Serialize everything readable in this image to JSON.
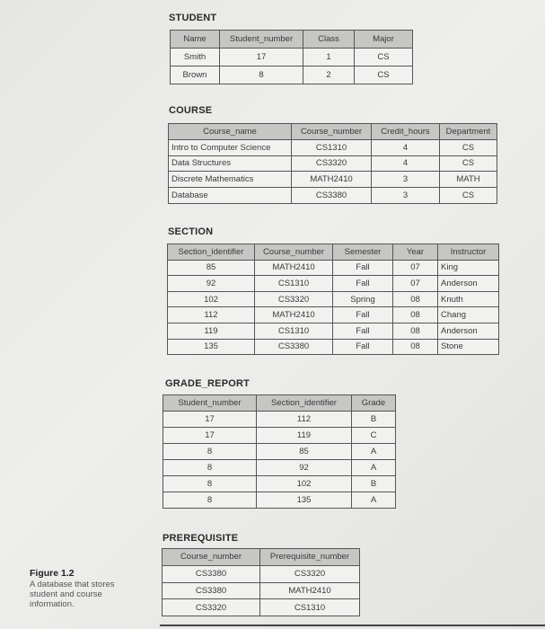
{
  "tables": [
    {
      "id": "student",
      "title": "STUDENT",
      "columns": [
        "Name",
        "Student_number",
        "Class",
        "Major"
      ],
      "align": [
        "c",
        "c",
        "c",
        "c"
      ],
      "rows": [
        [
          "Smith",
          "17",
          "1",
          "CS"
        ],
        [
          "Brown",
          "8",
          "2",
          "CS"
        ]
      ]
    },
    {
      "id": "course",
      "title": "COURSE",
      "columns": [
        "Course_name",
        "Course_number",
        "Credit_hours",
        "Department"
      ],
      "align": [
        "l",
        "c",
        "c",
        "c"
      ],
      "rows": [
        [
          "Intro to Computer Science",
          "CS1310",
          "4",
          "CS"
        ],
        [
          "Data Structures",
          "CS3320",
          "4",
          "CS"
        ],
        [
          "Discrete Mathematics",
          "MATH2410",
          "3",
          "MATH"
        ],
        [
          "Database",
          "CS3380",
          "3",
          "CS"
        ]
      ]
    },
    {
      "id": "section",
      "title": "SECTION",
      "columns": [
        "Section_identifier",
        "Course_number",
        "Semester",
        "Year",
        "Instructor"
      ],
      "align": [
        "c",
        "c",
        "c",
        "c",
        "l"
      ],
      "rows": [
        [
          "85",
          "MATH2410",
          "Fall",
          "07",
          "King"
        ],
        [
          "92",
          "CS1310",
          "Fall",
          "07",
          "Anderson"
        ],
        [
          "102",
          "CS3320",
          "Spring",
          "08",
          "Knuth"
        ],
        [
          "112",
          "MATH2410",
          "Fall",
          "08",
          "Chang"
        ],
        [
          "119",
          "CS1310",
          "Fall",
          "08",
          "Anderson"
        ],
        [
          "135",
          "CS3380",
          "Fall",
          "08",
          "Stone"
        ]
      ]
    },
    {
      "id": "grade-report",
      "title": "GRADE_REPORT",
      "columns": [
        "Student_number",
        "Section_identifier",
        "Grade"
      ],
      "align": [
        "c",
        "c",
        "c"
      ],
      "rows": [
        [
          "17",
          "112",
          "B"
        ],
        [
          "17",
          "119",
          "C"
        ],
        [
          "8",
          "85",
          "A"
        ],
        [
          "8",
          "92",
          "A"
        ],
        [
          "8",
          "102",
          "B"
        ],
        [
          "8",
          "135",
          "A"
        ]
      ]
    },
    {
      "id": "prerequisite",
      "title": "PREREQUISITE",
      "columns": [
        "Course_number",
        "Prerequisite_number"
      ],
      "align": [
        "c",
        "c"
      ],
      "rows": [
        [
          "CS3380",
          "CS3320"
        ],
        [
          "CS3380",
          "MATH2410"
        ],
        [
          "CS3320",
          "CS1310"
        ]
      ]
    }
  ],
  "caption": {
    "label": "Figure 1.2",
    "text": "A database that stores student and course information."
  }
}
